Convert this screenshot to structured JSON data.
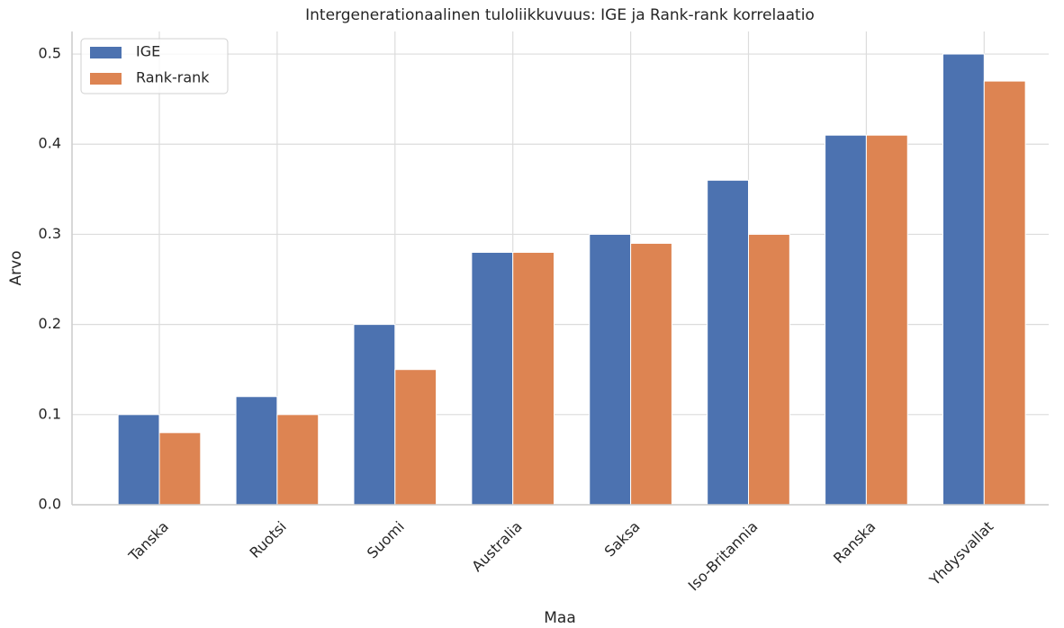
{
  "chart_data": {
    "type": "bar",
    "title": "Intergenerationaalinen tuloliikkuvuus: IGE ja Rank-rank korrelaatio",
    "xlabel": "Maa",
    "ylabel": "Arvo",
    "categories": [
      "Tanska",
      "Ruotsi",
      "Suomi",
      "Australia",
      "Saksa",
      "Iso-Britannia",
      "Ranska",
      "Yhdysvallat"
    ],
    "series": [
      {
        "name": "IGE",
        "color": "#4c72b0",
        "values": [
          0.1,
          0.12,
          0.2,
          0.28,
          0.3,
          0.36,
          0.41,
          0.5
        ]
      },
      {
        "name": "Rank-rank",
        "color": "#dd8452",
        "values": [
          0.08,
          0.1,
          0.15,
          0.28,
          0.29,
          0.3,
          0.41,
          0.47
        ]
      }
    ],
    "ylim": [
      0,
      0.525
    ],
    "yticks": [
      {
        "value": 0,
        "label": "0.0"
      },
      0.1,
      0.2,
      0.3,
      0.4,
      0.5
    ],
    "grid": true,
    "legend": "upper left"
  }
}
